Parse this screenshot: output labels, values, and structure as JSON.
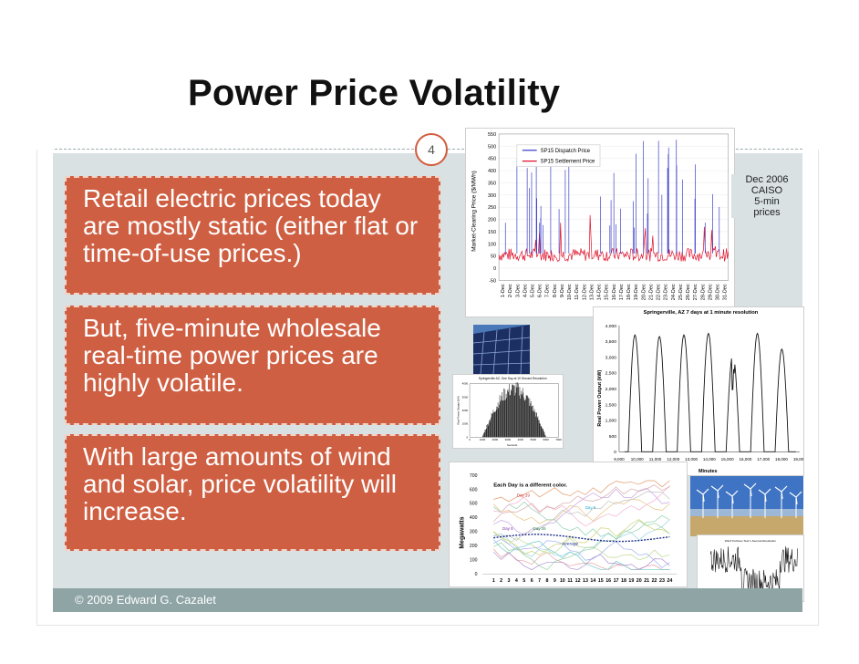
{
  "slide": {
    "title": "Power Price Volatility",
    "page_number": "4",
    "footer": "© 2009 Edward G. Cazalet"
  },
  "callouts": [
    {
      "text": "Retail electric prices today are mostly static (either flat  or time-of-use prices.)"
    },
    {
      "text": "But,  five-minute wholesale real-time power prices are highly volatile."
    },
    {
      "text": "With large amounts of wind and solar, price volatility will increase."
    }
  ],
  "chart_data": [
    {
      "type": "line",
      "ylabel": "Market-Clearing Price ($/MWh)",
      "ylim": [
        -50,
        550
      ],
      "yticks": [
        "550",
        "500",
        "450",
        "400",
        "350",
        "300",
        "250",
        "200",
        "150",
        "100",
        "50",
        "0",
        "-50"
      ],
      "categories": [
        "1-Dec",
        "2-Dec",
        "3-Dec",
        "4-Dec",
        "5-Dec",
        "6-Dec",
        "7-Dec",
        "8-Dec",
        "9-Dec",
        "10-Dec",
        "11-Dec",
        "12-Dec",
        "13-Dec",
        "14-Dec",
        "15-Dec",
        "16-Dec",
        "17-Dec",
        "18-Dec",
        "19-Dec",
        "20-Dec",
        "21-Dec",
        "22-Dec",
        "23-Dec",
        "24-Dec",
        "25-Dec",
        "26-Dec",
        "27-Dec",
        "28-Dec",
        "29-Dec",
        "30-Dec",
        "31-Dec"
      ],
      "series": [
        {
          "name": "SP15 Dispatch Price",
          "color": "#3b3fc6"
        },
        {
          "name": "SP15 Settlement Price",
          "color": "#e0102a"
        }
      ],
      "annotation": [
        "Dec 2006",
        "CAISO",
        "5-min",
        "prices"
      ]
    },
    {
      "type": "line",
      "title": "Springerville, AZ 7 days at 1 minute resolution",
      "ylabel": "Real Power Output (kW)",
      "xlabel": "Minutes",
      "yticks": [
        "4,000",
        "3,500",
        "3,000",
        "2,500",
        "2,000",
        "1,500",
        "1,000",
        "500",
        "0"
      ],
      "xticks": [
        "9,000",
        "10,000",
        "11,000",
        "12,000",
        "13,000",
        "14,000",
        "15,000",
        "16,000",
        "17,000",
        "18,000",
        "19,000"
      ]
    },
    {
      "type": "line",
      "title": "Springerville AZ, One Day at 10 Second Resolution",
      "ylabel": "Real Power Output (kW)",
      "xlabel": "Seconds",
      "yticks": [
        "4000",
        "3000",
        "2000",
        "1000",
        "0"
      ],
      "xticks": [
        "0",
        "1000",
        "2000",
        "3000",
        "4000",
        "5000",
        "6000",
        "7000"
      ]
    },
    {
      "type": "line",
      "title": "Each Day is a different color.",
      "ylabel": "Megawatts",
      "yticks": [
        "700",
        "600",
        "500",
        "400",
        "300",
        "200",
        "100",
        "0"
      ],
      "xticks": [
        "1",
        "2",
        "3",
        "4",
        "5",
        "6",
        "7",
        "8",
        "9",
        "10",
        "11",
        "12",
        "13",
        "14",
        "15",
        "16",
        "17",
        "18",
        "19",
        "20",
        "21",
        "22",
        "23",
        "24"
      ],
      "labels": [
        "Day 29",
        "Day 5",
        "Day 9",
        "Day 26",
        "Average"
      ]
    },
    {
      "type": "line",
      "title": "Wind Turbines Test 1-Second Resolution",
      "xlabel": "Seconds Since 00:00 ... June 24, 2006"
    }
  ]
}
